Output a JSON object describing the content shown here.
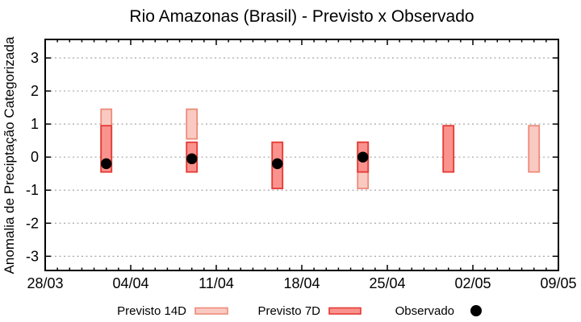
{
  "chart_data": {
    "type": "bar",
    "subtype": "range-bars-with-scatter-overlay",
    "title": "Rio Amazonas (Brasil) - Previsto x Observado",
    "ylabel": "Anomalia de Preciptação Categorizada",
    "xlabel": "",
    "ylim": [
      -3.43,
      3.56
    ],
    "y_ticks": [
      3,
      2,
      1,
      0,
      -1,
      -2,
      -3
    ],
    "x_range_days": [
      0,
      42
    ],
    "x_start_date": "28/03",
    "x_minor_tick_interval_days": 1,
    "x_ticks": [
      {
        "day": 0,
        "label": "28/03"
      },
      {
        "day": 7,
        "label": "04/04"
      },
      {
        "day": 14,
        "label": "11/04"
      },
      {
        "day": 21,
        "label": "18/04"
      },
      {
        "day": 28,
        "label": "25/04"
      },
      {
        "day": 35,
        "label": "02/05"
      },
      {
        "day": 42,
        "label": "09/05"
      }
    ],
    "grid": {
      "horizontal": "dotted",
      "color": "#a6a6a6"
    },
    "legend_position": "bottom-center",
    "series": [
      {
        "name": "Previsto 14D",
        "type": "range-bar",
        "fill": "#f9cac1",
        "stroke": "#ee8a7a",
        "bars": [
          {
            "date": "02/04",
            "day": 5,
            "low": -0.45,
            "high": 1.45
          },
          {
            "date": "09/04",
            "day": 12,
            "low": 0.55,
            "high": 1.45
          },
          {
            "date": "23/04",
            "day": 26,
            "low": -0.95,
            "high": 0.45
          },
          {
            "date": "07/05",
            "day": 40,
            "low": -0.45,
            "high": 0.95
          }
        ]
      },
      {
        "name": "Previsto 7D",
        "type": "range-bar",
        "fill": "#fa938d",
        "stroke": "#e53935",
        "bars": [
          {
            "date": "02/04",
            "day": 5,
            "low": -0.45,
            "high": 0.95
          },
          {
            "date": "09/04",
            "day": 12,
            "low": -0.45,
            "high": 0.45
          },
          {
            "date": "16/04",
            "day": 19,
            "low": -0.95,
            "high": 0.45
          },
          {
            "date": "23/04",
            "day": 26,
            "low": -0.45,
            "high": 0.45
          },
          {
            "date": "30/04",
            "day": 33,
            "low": -0.45,
            "high": 0.95
          }
        ]
      },
      {
        "name": "Observado",
        "type": "scatter",
        "color": "#000000",
        "points": [
          {
            "date": "02/04",
            "day": 5,
            "value": -0.2
          },
          {
            "date": "09/04",
            "day": 12,
            "value": -0.05
          },
          {
            "date": "16/04",
            "day": 19,
            "value": -0.2
          },
          {
            "date": "23/04",
            "day": 26,
            "value": 0.0
          }
        ]
      }
    ]
  }
}
